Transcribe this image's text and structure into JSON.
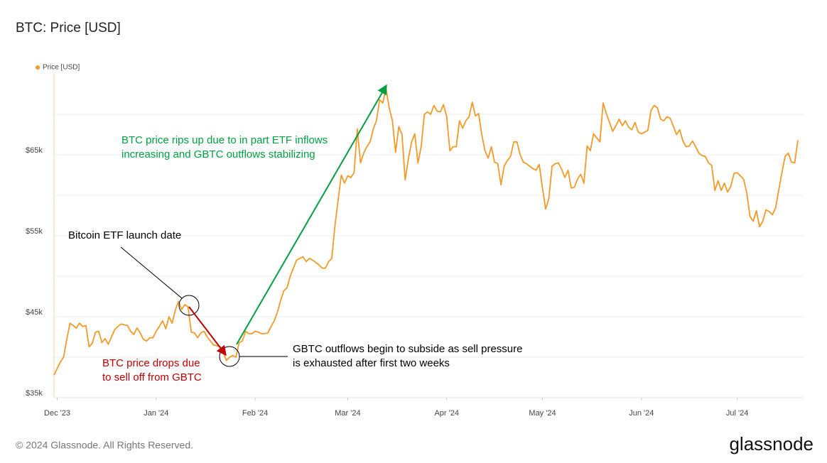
{
  "chart_data": {
    "type": "line",
    "title": "BTC: Price [USD]",
    "series": [
      {
        "name": "Price [USD]",
        "color": "#f39a28",
        "values": [
          37800,
          38600,
          39400,
          40000,
          42200,
          44200,
          43900,
          43600,
          44200,
          43800,
          43900,
          41300,
          41700,
          43100,
          43200,
          41800,
          42300,
          41600,
          42500,
          43400,
          43800,
          44100,
          44000,
          43900,
          43200,
          42800,
          43600,
          43000,
          42200,
          42000,
          42400,
          42400,
          43200,
          43800,
          44500,
          43500,
          45000,
          44200,
          45800,
          46900,
          45900,
          46500,
          46200,
          43100,
          43000,
          42400,
          43000,
          43200,
          42500,
          42000,
          41500,
          41400,
          41300,
          40600,
          39600,
          40000,
          40200,
          40000,
          41800,
          42000,
          43200,
          42900,
          42900,
          43200,
          43100,
          42900,
          42900,
          43000,
          43800,
          44500,
          45600,
          47000,
          48200,
          48600,
          50000,
          51000,
          52000,
          52200,
          52400,
          51800,
          52200,
          52000,
          51700,
          51400,
          51000,
          51000,
          51800,
          52200,
          56200,
          59400,
          62500,
          61500,
          62400,
          62200,
          62800,
          68200,
          64000,
          65200,
          66000,
          66600,
          68200,
          69200,
          71800,
          71400,
          73200,
          70800,
          69200,
          65300,
          68500,
          67500,
          61900,
          64500,
          66600,
          67600,
          64000,
          66000,
          70000,
          70300,
          70000,
          71100,
          70400,
          70300,
          71200,
          69700,
          65500,
          66000,
          66000,
          69200,
          68300,
          69200,
          69700,
          71500,
          69800,
          70100,
          67500,
          65500,
          64600,
          66000,
          64100,
          63900,
          61300,
          63600,
          64300,
          64800,
          66600,
          66600,
          65000,
          64100,
          63900,
          63600,
          63300,
          63100,
          63800,
          60900,
          58300,
          59600,
          63600,
          63900,
          64000,
          63200,
          62200,
          63100,
          60900,
          61000,
          62000,
          62600,
          61500,
          66100,
          65500,
          67600,
          67100,
          66600,
          71400,
          70100,
          69000,
          67900,
          68600,
          69400,
          68600,
          69200,
          68400,
          68100,
          69000,
          67800,
          67600,
          67800,
          68000,
          70500,
          71100,
          70800,
          69400,
          69200,
          69700,
          69500,
          68500,
          67500,
          68100,
          66700,
          66000,
          66100,
          66700,
          66000,
          65200,
          64900,
          64800,
          64000,
          63700,
          60600,
          61800,
          60600,
          61500,
          60400,
          61100,
          62700,
          62800,
          62400,
          62000,
          60300,
          57400,
          56800,
          58100,
          56100,
          56800,
          58200,
          58000,
          57600,
          58400,
          60600,
          62800,
          64800,
          65200,
          64100,
          64000,
          66800
        ]
      }
    ],
    "xlim": [
      0,
      233
    ],
    "xticks": [
      {
        "value": 1,
        "label": "Dec '23"
      },
      {
        "value": 32,
        "label": "Jan '24"
      },
      {
        "value": 63,
        "label": "Feb '24"
      },
      {
        "value": 92,
        "label": "Mar '24"
      },
      {
        "value": 123,
        "label": "Apr '24"
      },
      {
        "value": 153,
        "label": "May '24"
      },
      {
        "value": 184,
        "label": "Jun '24"
      },
      {
        "value": 214,
        "label": "Jul '24"
      }
    ],
    "ylim": [
      35000,
      75000
    ],
    "yticks": [
      {
        "value": 35000,
        "label": "$35k"
      },
      {
        "value": 45000,
        "label": "$45k"
      },
      {
        "value": 55000,
        "label": "$55k"
      },
      {
        "value": 65000,
        "label": "$65k"
      }
    ],
    "minor_yticks": [
      40000,
      50000,
      60000,
      70000
    ],
    "grid": true,
    "legend": "top-left",
    "annotations": [
      {
        "lines": [
          "Bitcoin ETF launch date"
        ],
        "color": "#000000"
      },
      {
        "lines": [
          "BTC price drops due",
          "to sell off from GBTC"
        ],
        "color": "#c00000"
      },
      {
        "lines": [
          "BTC price rips up due to in part ETF inflows",
          "increasing and GBTC outflows stabilizing"
        ],
        "color": "#00a040"
      },
      {
        "lines": [
          "GBTC outflows begin to subside as sell pressure",
          "is exhausted after first two weeks"
        ],
        "color": "#000000"
      }
    ]
  },
  "footer": {
    "copyright": "© 2024 Glassnode. All Rights Reserved.",
    "logo": "glassnode"
  }
}
